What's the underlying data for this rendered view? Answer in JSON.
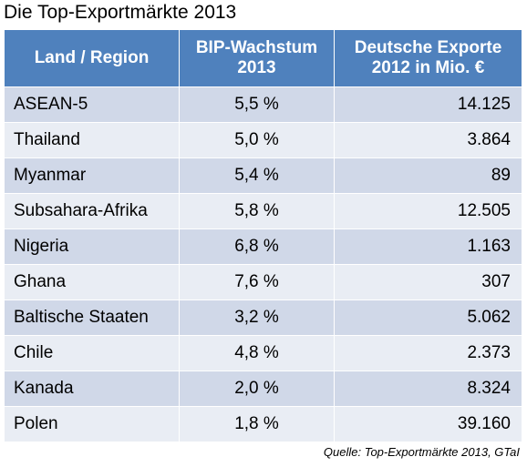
{
  "title": "Die Top-Exportmärkte 2013",
  "table": {
    "headers": {
      "land": "Land / Region",
      "bip_line1": "BIP-Wachstum",
      "bip_line2": "2013",
      "exp_line1": "Deutsche Exporte",
      "exp_line2": "2012 in Mio. €"
    },
    "rows": [
      {
        "land": "ASEAN-5",
        "bip": "5,5 %",
        "exporte": "14.125"
      },
      {
        "land": "Thailand",
        "bip": "5,0 %",
        "exporte": "3.864"
      },
      {
        "land": "Myanmar",
        "bip": "5,4 %",
        "exporte": "89"
      },
      {
        "land": "Subsahara-Afrika",
        "bip": "5,8 %",
        "exporte": "12.505"
      },
      {
        "land": "Nigeria",
        "bip": "6,8 %",
        "exporte": "1.163"
      },
      {
        "land": "Ghana",
        "bip": "7,6 %",
        "exporte": "307"
      },
      {
        "land": "Baltische Staaten",
        "bip": "3,2 %",
        "exporte": "5.062"
      },
      {
        "land": "Chile",
        "bip": "4,8 %",
        "exporte": "2.373"
      },
      {
        "land": "Kanada",
        "bip": "2,0 %",
        "exporte": "8.324"
      },
      {
        "land": "Polen",
        "bip": "1,8 %",
        "exporte": "39.160"
      }
    ]
  },
  "source": "Quelle: Top-Exportmärkte 2013, GTaI",
  "colors": {
    "header_bg": "#4f81bd",
    "row_dark": "#d0d8e8",
    "row_light": "#e9edf4"
  }
}
